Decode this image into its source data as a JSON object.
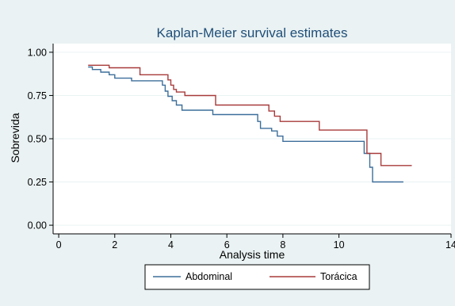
{
  "chart_data": {
    "type": "line",
    "step": true,
    "title": "Kaplan-Meier survival estimates",
    "xlabel": "Analysis time",
    "ylabel": "Sobrevida",
    "xlim": [
      -0.2,
      14
    ],
    "ylim": [
      -0.05,
      1.05
    ],
    "xticks": [
      0,
      2,
      4,
      6,
      8,
      10,
      14
    ],
    "xtick_labels": [
      "0",
      "2",
      "4",
      "6",
      "8",
      "10",
      "14"
    ],
    "yticks": [
      0,
      0.25,
      0.5,
      0.75,
      1.0
    ],
    "ytick_labels": [
      "0.00",
      "0.25",
      "0.50",
      "0.75",
      "1.00"
    ],
    "grid": "horizontal",
    "legend_position": "bottom",
    "colors": {
      "background": "#eaf2f3",
      "plot_background": "#ffffff",
      "title": "#1f4e79",
      "grid": "#eaf2f3"
    },
    "series": [
      {
        "name": "Abdominal",
        "color": "#3c6e9a",
        "x": [
          1.05,
          1.2,
          1.5,
          1.8,
          2.0,
          2.6,
          3.7,
          3.8,
          3.9,
          4.05,
          4.2,
          4.4,
          5.5,
          7.1,
          7.2,
          7.6,
          7.8,
          8.0,
          10.9,
          11.1,
          11.2,
          12.3
        ],
        "y": [
          0.915,
          0.9,
          0.885,
          0.87,
          0.85,
          0.835,
          0.81,
          0.775,
          0.745,
          0.72,
          0.695,
          0.665,
          0.64,
          0.6,
          0.56,
          0.545,
          0.515,
          0.485,
          0.415,
          0.335,
          0.25,
          0.25
        ]
      },
      {
        "name": "Torácica",
        "color": "#a83a3a",
        "x": [
          1.05,
          1.8,
          2.9,
          3.9,
          4.0,
          4.1,
          4.2,
          4.5,
          5.6,
          7.5,
          7.7,
          7.9,
          9.3,
          11.0,
          11.2,
          11.5,
          12.6
        ],
        "y": [
          0.925,
          0.91,
          0.87,
          0.84,
          0.81,
          0.785,
          0.77,
          0.75,
          0.695,
          0.66,
          0.63,
          0.6,
          0.55,
          0.415,
          0.415,
          0.345,
          0.345
        ]
      }
    ]
  }
}
